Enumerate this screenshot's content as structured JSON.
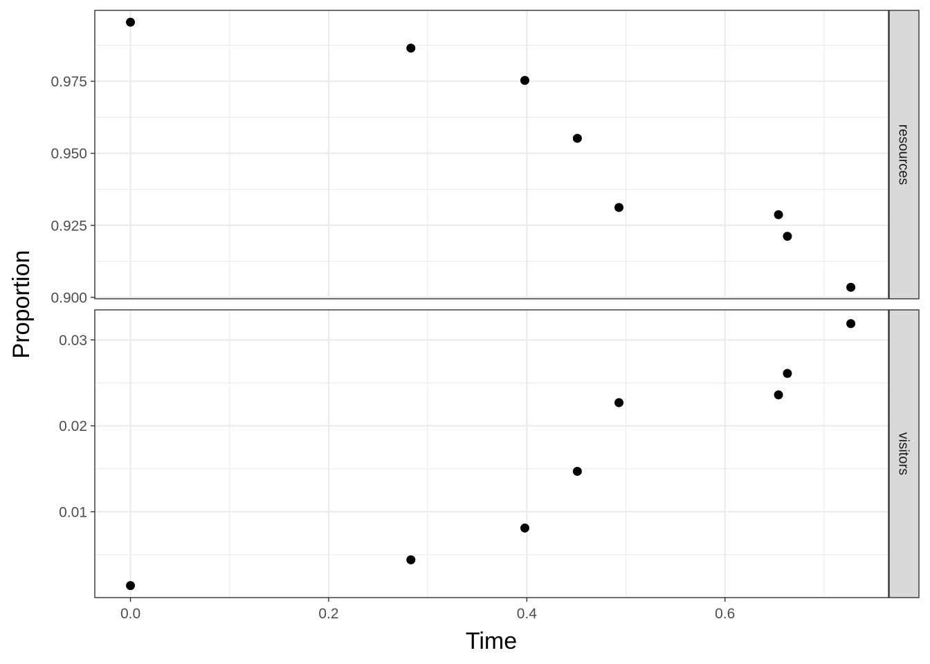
{
  "chart_data": {
    "type": "scatter",
    "xlabel": "Time",
    "ylabel": "Proportion",
    "xlim": [
      -0.036,
      0.765
    ],
    "x_ticks": [
      0.0,
      0.2,
      0.4,
      0.6
    ],
    "x_tick_labels": [
      "0.0",
      "0.2",
      "0.4",
      "0.6"
    ],
    "grid": true,
    "facets": [
      {
        "strip_label": "resources",
        "ylim": [
          0.8995,
          0.9996
        ],
        "y_ticks": [
          0.9,
          0.925,
          0.95,
          0.975
        ],
        "y_tick_labels": [
          "0.900",
          "0.925",
          "0.950",
          "0.975"
        ],
        "points": [
          {
            "x": 0.0,
            "y": 0.9955
          },
          {
            "x": 0.283,
            "y": 0.9865
          },
          {
            "x": 0.398,
            "y": 0.9753
          },
          {
            "x": 0.451,
            "y": 0.9552
          },
          {
            "x": 0.493,
            "y": 0.9312
          },
          {
            "x": 0.654,
            "y": 0.9287
          },
          {
            "x": 0.663,
            "y": 0.9212
          },
          {
            "x": 0.727,
            "y": 0.9035
          }
        ]
      },
      {
        "strip_label": "visitors",
        "ylim": [
          0.0,
          0.0335
        ],
        "y_ticks": [
          0.01,
          0.02,
          0.03
        ],
        "y_tick_labels": [
          "0.01",
          "0.02",
          "0.03"
        ],
        "points": [
          {
            "x": 0.0,
            "y": 0.0014
          },
          {
            "x": 0.283,
            "y": 0.0044
          },
          {
            "x": 0.398,
            "y": 0.0081
          },
          {
            "x": 0.451,
            "y": 0.0147
          },
          {
            "x": 0.493,
            "y": 0.0227
          },
          {
            "x": 0.654,
            "y": 0.0236
          },
          {
            "x": 0.663,
            "y": 0.0261
          },
          {
            "x": 0.727,
            "y": 0.0319
          }
        ]
      }
    ],
    "point_color": "#000000",
    "strip_color": "#d9d9d9"
  }
}
